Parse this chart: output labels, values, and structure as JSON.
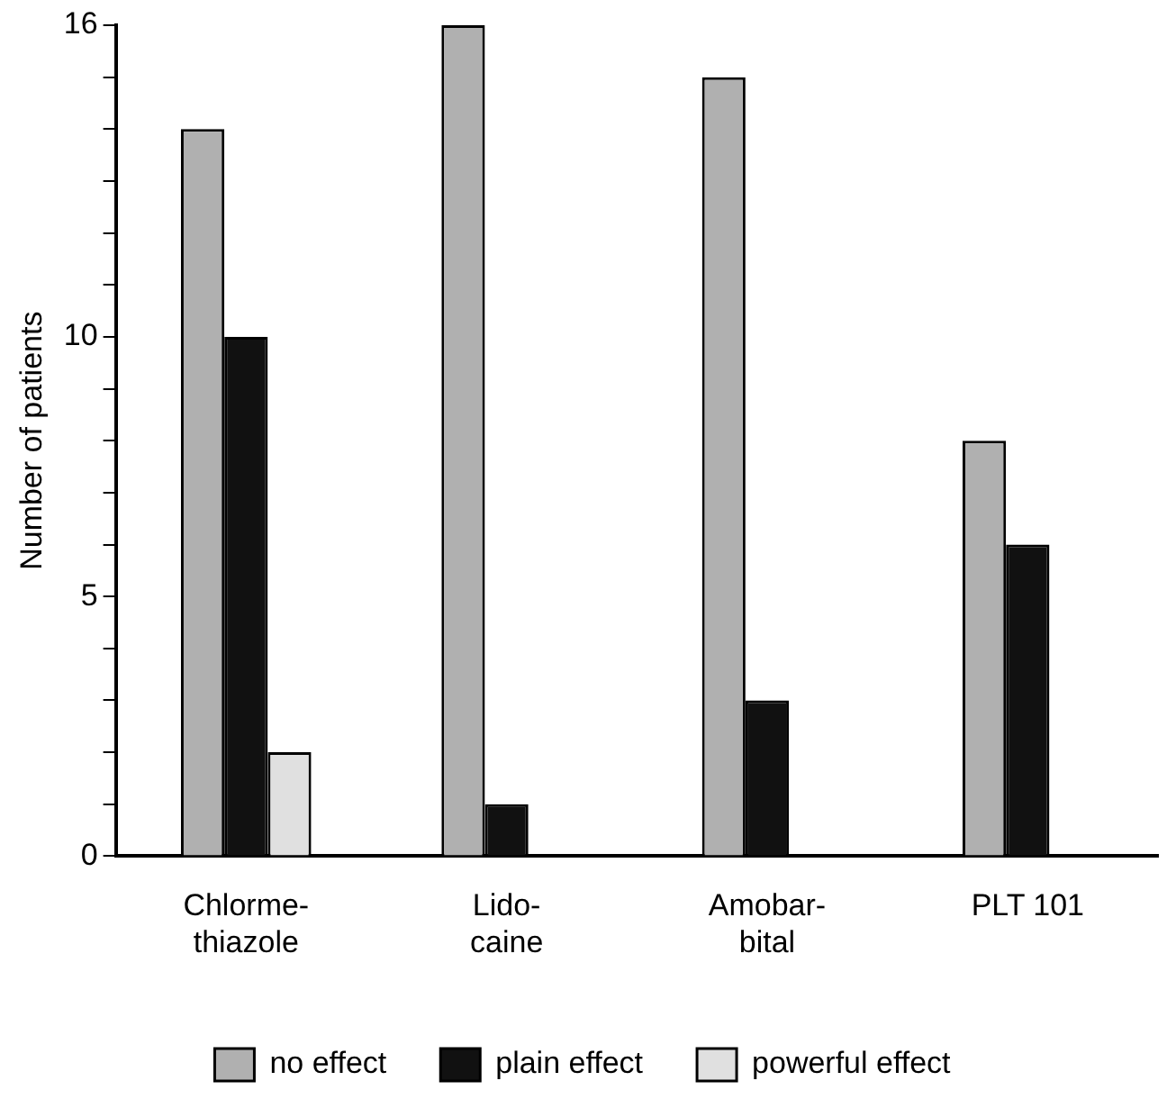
{
  "chart_data": {
    "type": "bar",
    "ylabel": "Number of patients",
    "categories": [
      "Chlorme-\nthiazole",
      "Lido-\ncaine",
      "Amobar-\nbital",
      "PLT 101"
    ],
    "series": [
      {
        "name": "no effect",
        "color": "#b0b0b0",
        "values": [
          14,
          16,
          15,
          8
        ]
      },
      {
        "name": "plain effect",
        "color": "#111111",
        "values": [
          10,
          1,
          3,
          6
        ]
      },
      {
        "name": "powerful effect",
        "color": "#e0e0e0",
        "values": [
          2,
          0,
          0,
          0
        ]
      }
    ],
    "ylim": [
      0,
      16
    ],
    "yticks": [
      0,
      {
        "value": 1,
        "label": null
      },
      {
        "value": 2,
        "label": null
      },
      {
        "value": 3,
        "label": null
      },
      {
        "value": 4,
        "label": null
      },
      5,
      {
        "value": 6,
        "label": null
      },
      {
        "value": 7,
        "label": null
      },
      {
        "value": 8,
        "label": null
      },
      {
        "value": 9,
        "label": null
      },
      10,
      {
        "value": 11,
        "label": null
      },
      {
        "value": 12,
        "label": null
      },
      {
        "value": 13,
        "label": null
      },
      {
        "value": 14,
        "label": null
      },
      {
        "value": 15,
        "label": null
      },
      16
    ],
    "grid": false,
    "legend": "bottom"
  }
}
